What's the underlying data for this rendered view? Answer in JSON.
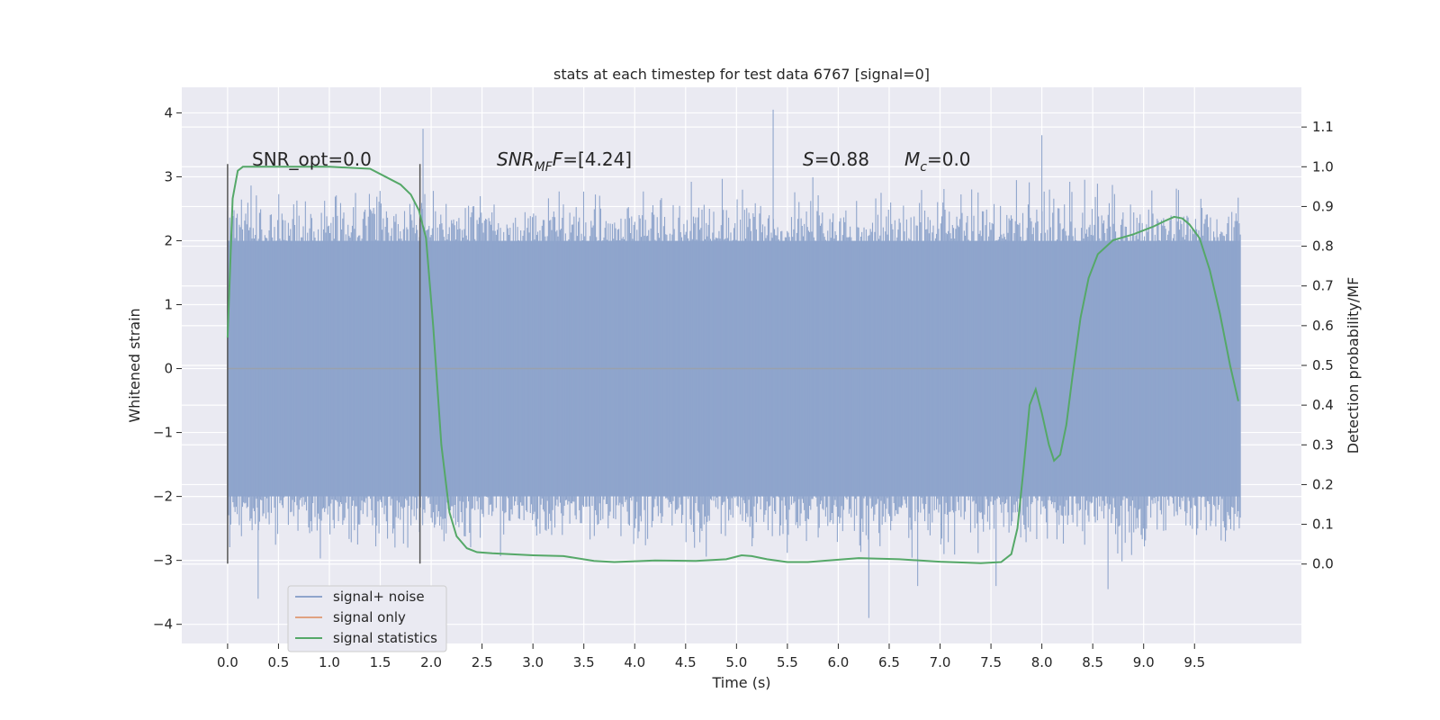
{
  "chart_data": {
    "type": "line",
    "title": "stats at each timestep for test data 6767 [signal=0]",
    "xlabel": "Time (s)",
    "ylabel": "Whitened strain",
    "y2label": "Detection probability/MF",
    "xlim": [
      -0.45,
      10.55
    ],
    "ylim": [
      -4.3,
      4.4
    ],
    "y2lim": [
      -0.2,
      1.2
    ],
    "x_ticks": [
      "0.0",
      "0.5",
      "1.0",
      "1.5",
      "2.0",
      "2.5",
      "3.0",
      "3.5",
      "4.0",
      "4.5",
      "5.0",
      "5.5",
      "6.0",
      "6.5",
      "7.0",
      "7.5",
      "8.0",
      "8.5",
      "9.0",
      "9.5"
    ],
    "y_ticks": [
      "4",
      "3",
      "2",
      "1",
      "0",
      "−1",
      "−2",
      "−3",
      "−4"
    ],
    "y2_ticks": [
      "1.1",
      "1.0",
      "0.9",
      "0.8",
      "0.7",
      "0.6",
      "0.5",
      "0.4",
      "0.3",
      "0.2",
      "0.1",
      "0.0"
    ],
    "grid": true,
    "legend_position": "lower-left",
    "annotations": {
      "snr_opt": "SNR_opt=0.0",
      "snr_mf_main": "SNR",
      "snr_mf_sub": "MF",
      "snr_mf_value": "=[4.24]",
      "s_main": "S",
      "s_value": "=0.88",
      "mc_main": "M",
      "mc_sub": "c",
      "mc_value": "=0.0"
    },
    "markers": {
      "x": [
        0.0,
        1.89
      ],
      "y_range": [
        -3.05,
        3.2
      ]
    },
    "series": [
      {
        "name": "signal+ noise",
        "color": "#8fa5cc",
        "description_note": "noise",
        "x_range": [
          0.0,
          9.95
        ],
        "typical_range": [
          -2.0,
          2.0
        ],
        "peaks": [
          {
            "x": 1.92,
            "y": 3.75
          },
          {
            "x": 5.36,
            "y": 4.05
          },
          {
            "x": 8.0,
            "y": 3.65
          },
          {
            "x": 6.3,
            "y": -3.9
          },
          {
            "x": 0.3,
            "y": -3.6
          },
          {
            "x": 8.65,
            "y": -3.45
          },
          {
            "x": 7.55,
            "y": -3.4
          },
          {
            "x": 6.78,
            "y": -3.4
          }
        ]
      },
      {
        "name": "signal only",
        "color": "#dd8452",
        "values": "flat at 0"
      },
      {
        "name": "signal statistics",
        "color": "#55a868",
        "axis": "right",
        "x": [
          0.0,
          0.05,
          0.1,
          0.15,
          0.25,
          0.5,
          1.0,
          1.4,
          1.55,
          1.7,
          1.8,
          1.88,
          1.95,
          2.02,
          2.1,
          2.18,
          2.25,
          2.35,
          2.45,
          2.6,
          3.0,
          3.3,
          3.6,
          3.8,
          4.2,
          4.6,
          4.9,
          5.05,
          5.15,
          5.3,
          5.5,
          5.7,
          6.2,
          6.6,
          7.0,
          7.4,
          7.6,
          7.7,
          7.76,
          7.82,
          7.88,
          7.94,
          8.0,
          8.07,
          8.12,
          8.18,
          8.24,
          8.3,
          8.38,
          8.46,
          8.55,
          8.7,
          8.9,
          9.1,
          9.22,
          9.3,
          9.38,
          9.45,
          9.55,
          9.65,
          9.75,
          9.85,
          9.93
        ],
        "y": [
          0.57,
          0.92,
          0.99,
          1.0,
          1.0,
          1.0,
          1.0,
          0.995,
          0.975,
          0.955,
          0.93,
          0.89,
          0.82,
          0.6,
          0.3,
          0.13,
          0.07,
          0.04,
          0.03,
          0.027,
          0.022,
          0.02,
          0.008,
          0.005,
          0.009,
          0.008,
          0.012,
          0.022,
          0.02,
          0.012,
          0.005,
          0.005,
          0.015,
          0.012,
          0.006,
          0.002,
          0.005,
          0.025,
          0.09,
          0.24,
          0.4,
          0.44,
          0.38,
          0.3,
          0.26,
          0.275,
          0.35,
          0.47,
          0.62,
          0.72,
          0.78,
          0.815,
          0.83,
          0.85,
          0.865,
          0.874,
          0.87,
          0.855,
          0.82,
          0.74,
          0.63,
          0.5,
          0.41
        ]
      }
    ]
  }
}
